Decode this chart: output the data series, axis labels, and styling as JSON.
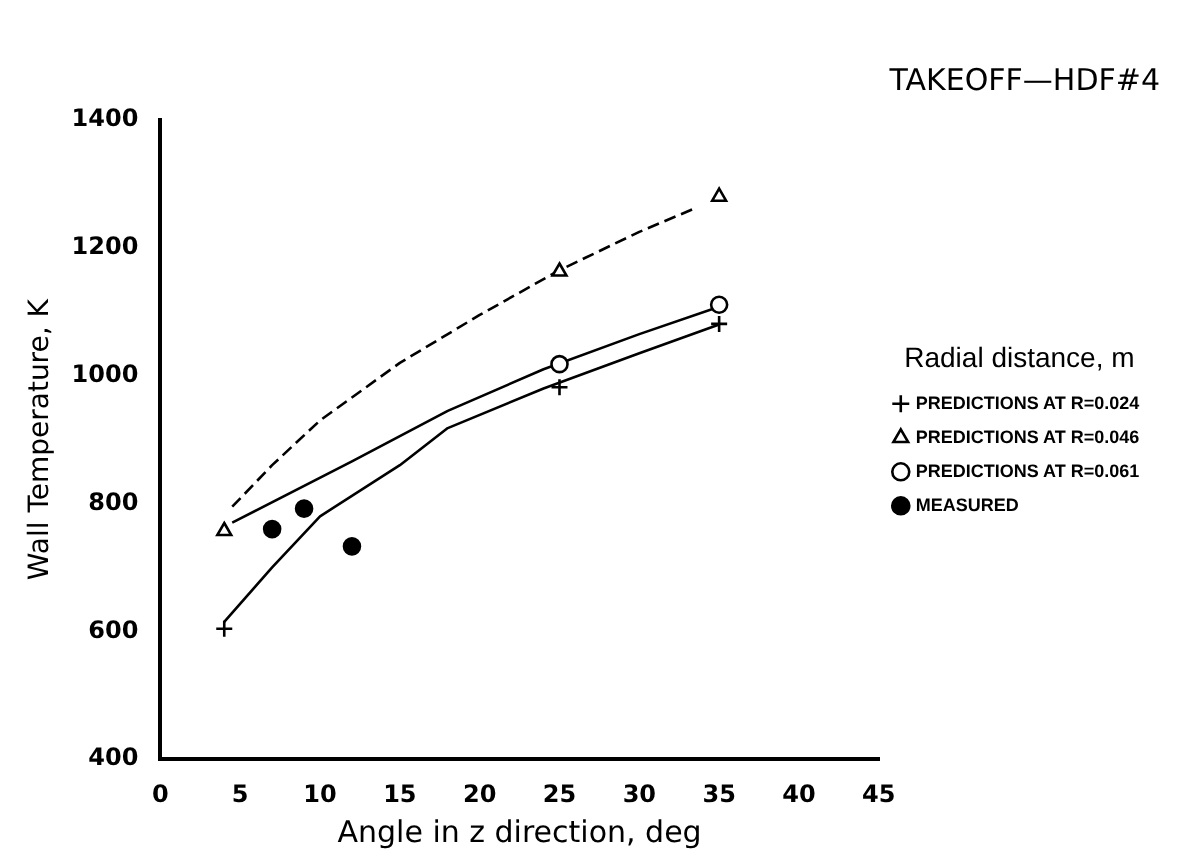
{
  "chart_data": {
    "type": "scatter",
    "title": "TAKEOFF—HDF#4",
    "xlabel": "Angle in z direction, deg",
    "ylabel": "Wall Temperature, K",
    "legend_title": "Radial distance, m",
    "legend": "right",
    "xlim": [
      0,
      45
    ],
    "xticks": [
      0,
      5,
      10,
      15,
      20,
      25,
      30,
      35,
      40,
      45
    ],
    "ylim": [
      400,
      1400
    ],
    "yticks": [
      400,
      600,
      800,
      1000,
      1200,
      1400
    ],
    "series": [
      {
        "name": "PREDICTIONS AT R=0.024",
        "color": "#000000",
        "marker": "cross",
        "x": [
          4,
          25,
          35
        ],
        "values": [
          604,
          982,
          1081
        ]
      },
      {
        "name": "PREDICTIONS AT R=0.046",
        "color": "#000000",
        "marker": "triangle",
        "x": [
          4,
          25,
          35
        ],
        "values": [
          757,
          1163,
          1280
        ]
      },
      {
        "name": "PREDICTIONS AT R=0.061",
        "color": "#000000",
        "marker": "circle",
        "x": [
          25,
          35
        ],
        "values": [
          1018,
          1111
        ]
      },
      {
        "name": "MEASURED",
        "color": "#000000",
        "marker": "circle_filled",
        "x": [
          7,
          9,
          12
        ],
        "values": [
          760,
          792,
          733
        ]
      },
      {
        "type": "line",
        "color": "#000000",
        "line_style": "solid",
        "x": [
          4,
          7,
          10,
          15,
          18,
          24,
          30,
          35
        ],
        "values": [
          615,
          700,
          780,
          860,
          918,
          980,
          1035,
          1080
        ]
      },
      {
        "type": "line",
        "color": "#000000",
        "line_style": "dashed",
        "x": [
          4.5,
          7,
          10,
          15,
          20,
          25,
          30,
          33.5
        ],
        "values": [
          795,
          860,
          930,
          1020,
          1095,
          1165,
          1225,
          1262
        ]
      },
      {
        "type": "line",
        "color": "#000000",
        "line_style": "solid",
        "x": [
          4.5,
          12,
          18,
          24,
          30,
          35
        ],
        "values": [
          770,
          866,
          945,
          1010,
          1065,
          1108
        ]
      }
    ]
  }
}
